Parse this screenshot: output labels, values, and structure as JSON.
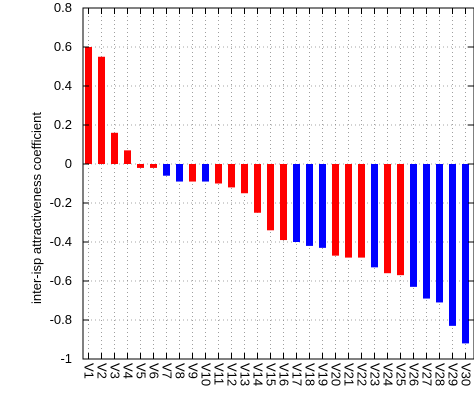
{
  "chart_data": {
    "type": "bar",
    "title": "",
    "xlabel": "",
    "ylabel": "inter-isp attractiveness coefficient",
    "ylim": [
      -1,
      0.8
    ],
    "yticks": [
      "0.8",
      "0.6",
      "0.4",
      "0.2",
      "0",
      "-0.2",
      "-0.4",
      "-0.6",
      "-0.8",
      "-1"
    ],
    "grid": true,
    "categories": [
      "V1",
      "V2",
      "V3",
      "V4",
      "V5",
      "V6",
      "V7",
      "V8",
      "V9",
      "V10",
      "V11",
      "V12",
      "V13",
      "V14",
      "V15",
      "V16",
      "V17",
      "V18",
      "V19",
      "V20",
      "V21",
      "V22",
      "V23",
      "V24",
      "V25",
      "V26",
      "V27",
      "V28",
      "V29",
      "V30"
    ],
    "values": [
      0.6,
      0.55,
      0.16,
      0.07,
      -0.02,
      -0.02,
      -0.06,
      -0.09,
      -0.09,
      -0.09,
      -0.1,
      -0.12,
      -0.15,
      -0.25,
      -0.34,
      -0.39,
      -0.4,
      -0.42,
      -0.43,
      -0.47,
      -0.48,
      -0.48,
      -0.53,
      -0.56,
      -0.57,
      -0.63,
      -0.69,
      -0.71,
      -0.83,
      -0.92
    ],
    "bar_colors": [
      "red",
      "red",
      "red",
      "red",
      "red",
      "red",
      "blue",
      "blue",
      "red",
      "blue",
      "red",
      "red",
      "red",
      "red",
      "red",
      "red",
      "blue",
      "blue",
      "blue",
      "red",
      "red",
      "red",
      "blue",
      "red",
      "red",
      "blue",
      "blue",
      "blue",
      "blue",
      "blue"
    ],
    "colors": {
      "red": "#ff0000",
      "blue": "#0000ff"
    }
  }
}
